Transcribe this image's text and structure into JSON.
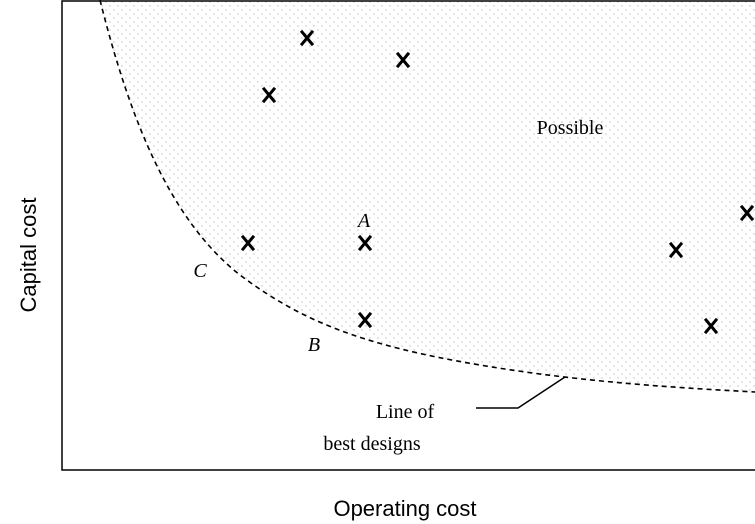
{
  "axes": {
    "x_label": "Operating cost",
    "y_label": "Capital cost"
  },
  "region_label": "Possible",
  "point_labels": [
    "A",
    "B",
    "C"
  ],
  "line_label": [
    "Line of",
    "best designs"
  ]
}
